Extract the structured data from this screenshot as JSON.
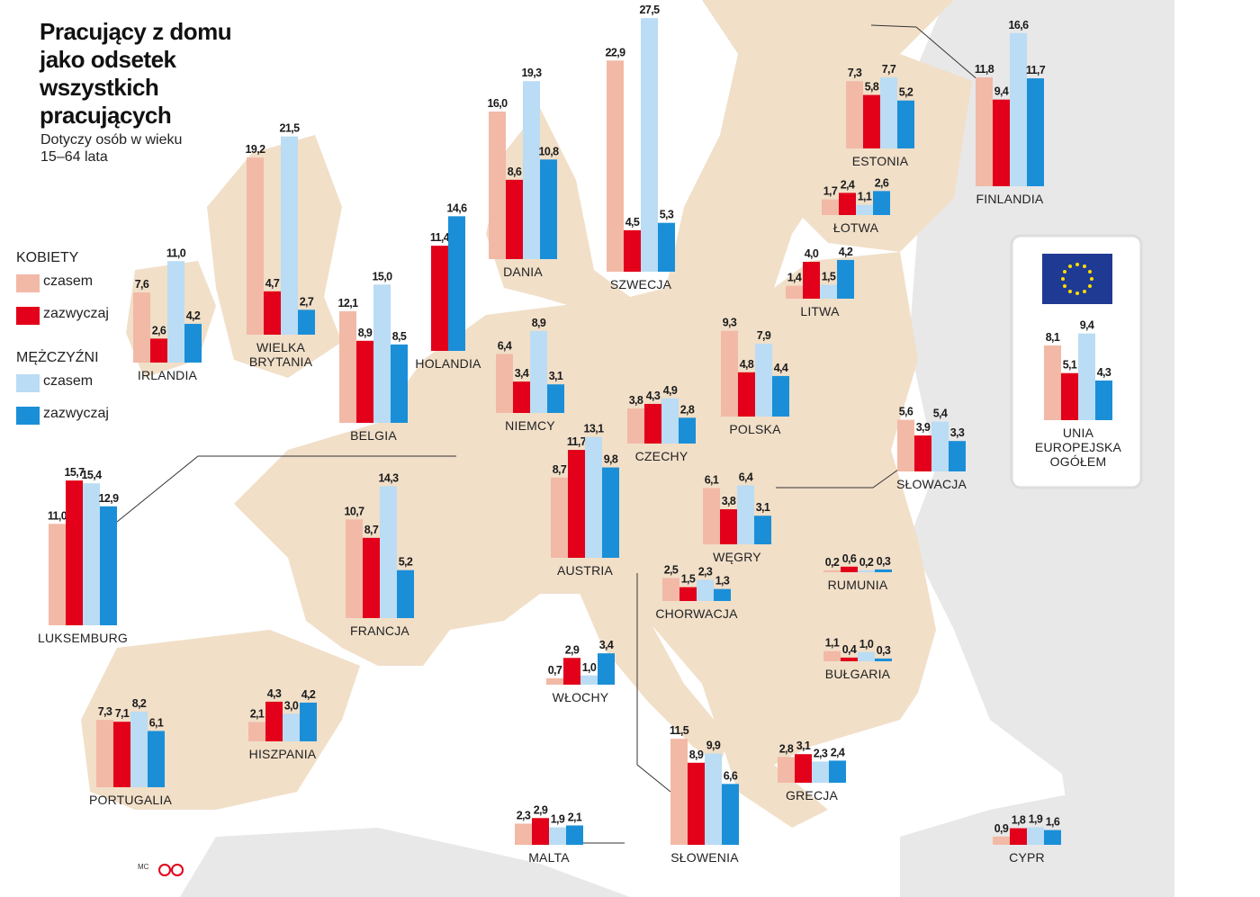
{
  "chart_data": {
    "type": "bar",
    "title": "Pracujący z domu jako odsetek wszystkich pracujących",
    "subtitle": "Dotyczy osób w wieku 15–64 lata",
    "legend_groups": [
      "KOBIETY",
      "MĘŻCZYŹNI"
    ],
    "credit": "MC",
    "categories": [
      "IRLANDIA",
      "WIELKA BRYTANIA",
      "BELGIA",
      "HOLANDIA",
      "DANIA",
      "SZWECJA",
      "ESTONIA",
      "FINLANDIA",
      "ŁOTWA",
      "LITWA",
      "NIEMCY",
      "CZECHY",
      "POLSKA",
      "SŁOWACJA",
      "UNIA EUROPEJSKA OGÓŁEM",
      "LUKSEMBURG",
      "FRANCJA",
      "AUSTRIA",
      "WĘGRY",
      "RUMUNIA",
      "CHORWACJA",
      "BUŁGARIA",
      "WŁOCHY",
      "HISZPANIA",
      "PORTUGALIA",
      "GRECJA",
      "SŁOWENIA",
      "MALTA",
      "CYPR"
    ],
    "series": [
      {
        "name": "czasem",
        "color": "#f2b9a6",
        "values": [
          7.6,
          19.2,
          12.1,
          null,
          16.0,
          22.9,
          7.3,
          11.8,
          1.7,
          1.4,
          6.4,
          3.8,
          9.3,
          5.6,
          8.1,
          11.0,
          10.7,
          8.7,
          6.1,
          0.2,
          2.5,
          1.1,
          0.7,
          2.1,
          7.3,
          2.8,
          11.5,
          2.3,
          0.9
        ],
        "value_labels": [
          "7,6",
          "19,2",
          "12,1",
          null,
          "16,0",
          "22,9",
          "7,3",
          "11,8",
          "1,7",
          "1,4",
          "6,4",
          "3,8",
          "9,3",
          "5,6",
          "8,1",
          "11,0",
          "10,7",
          "8,7",
          "6,1",
          "0,2",
          "2,5",
          "1,1",
          "0,7",
          "2,1",
          "7,3",
          "2,8",
          "11,5",
          "2,3",
          "0,9"
        ]
      },
      {
        "name": "zazwyczaj",
        "color": "#e2001a",
        "values": [
          2.6,
          4.7,
          8.9,
          11.4,
          8.6,
          4.5,
          5.8,
          9.4,
          2.4,
          4.0,
          3.4,
          4.3,
          4.8,
          3.9,
          5.1,
          15.7,
          8.7,
          11.7,
          3.8,
          0.6,
          1.5,
          0.4,
          2.9,
          4.3,
          7.1,
          3.1,
          8.9,
          2.9,
          1.8
        ],
        "value_labels": [
          "2,6",
          "4,7",
          "8,9",
          "11,4",
          "8,6",
          "4,5",
          "5,8",
          "9,4",
          "2,4",
          "4,0",
          "3,4",
          "4,3",
          "4,8",
          "3,9",
          "5,1",
          "15,7",
          "8,7",
          "11,7",
          "3,8",
          "0,6",
          "1,5",
          "0,4",
          "2,9",
          "4,3",
          "7,1",
          "3,1",
          "8,9",
          "2,9",
          "1,8"
        ]
      },
      {
        "name": "czasem",
        "color": "#badcf4",
        "values": [
          11.0,
          21.5,
          15.0,
          null,
          19.3,
          27.5,
          7.7,
          16.6,
          1.1,
          1.5,
          8.9,
          4.9,
          7.9,
          5.4,
          9.4,
          15.4,
          14.3,
          13.1,
          6.4,
          0.2,
          2.3,
          1.0,
          1.0,
          3.0,
          8.2,
          2.3,
          9.9,
          1.9,
          1.9
        ],
        "value_labels": [
          "11,0",
          "21,5",
          "15,0",
          null,
          "19,3",
          "27,5",
          "7,7",
          "16,6",
          "1,1",
          "1,5",
          "8,9",
          "4,9",
          "7,9",
          "5,4",
          "9,4",
          "15,4",
          "14,3",
          "13,1",
          "6,4",
          "0,2",
          "2,3",
          "1,0",
          "1,0",
          "3,0",
          "8,2",
          "2,3",
          "9,9",
          "1,9",
          "1,9"
        ]
      },
      {
        "name": "zazwyczaj",
        "color": "#1a8fd8",
        "values": [
          4.2,
          2.7,
          8.5,
          14.6,
          10.8,
          5.3,
          5.2,
          11.7,
          2.6,
          4.2,
          3.1,
          2.8,
          4.4,
          3.3,
          4.3,
          12.9,
          5.2,
          9.8,
          3.1,
          0.3,
          1.3,
          0.3,
          3.4,
          4.2,
          6.1,
          2.4,
          6.6,
          2.1,
          1.6
        ],
        "value_labels": [
          "4,2",
          "2,7",
          "8,5",
          "14,6",
          "10,8",
          "5,3",
          "5,2",
          "11,7",
          "2,6",
          "4,2",
          "3,1",
          "2,8",
          "4,4",
          "3,3",
          "4,3",
          "12,9",
          "5,2",
          "9,8",
          "3,1",
          "0,3",
          "1,3",
          "0,3",
          "3,4",
          "4,2",
          "6,1",
          "2,4",
          "6,6",
          "2,1",
          "1,6"
        ]
      }
    ]
  }
}
